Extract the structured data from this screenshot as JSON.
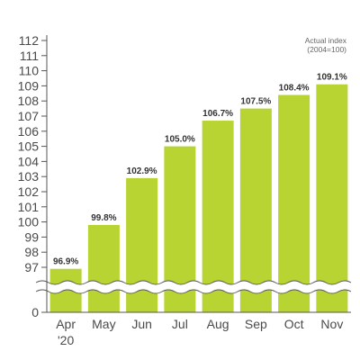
{
  "chart_data": {
    "type": "bar",
    "title": "",
    "xlabel": "",
    "ylabel": "",
    "note_lines": [
      "Actual index",
      "(2004=100)"
    ],
    "categories": [
      "Apr",
      "May",
      "Jun",
      "Jul",
      "Aug",
      "Sep",
      "Oct",
      "Nov"
    ],
    "category_sublabels": [
      "'20",
      "",
      "",
      "",
      "",
      "",
      "",
      ""
    ],
    "values": [
      96.9,
      99.8,
      102.9,
      105.0,
      106.7,
      107.5,
      108.4,
      109.1
    ],
    "data_labels": [
      "96.9%",
      "99.8%",
      "102.9%",
      "105.0%",
      "106.7%",
      "107.5%",
      "108.4%",
      "109.1%"
    ],
    "y_ticks": [
      0,
      97,
      98,
      99,
      100,
      101,
      102,
      103,
      104,
      105,
      106,
      107,
      108,
      109,
      110,
      111,
      112
    ],
    "ylim": [
      97,
      112
    ],
    "axis_break": true,
    "grid": false,
    "colors": {
      "bar": "#b8d432",
      "bar_edge": "#9cb82a",
      "axis": "#555555",
      "text": "#4a4a4a"
    }
  }
}
